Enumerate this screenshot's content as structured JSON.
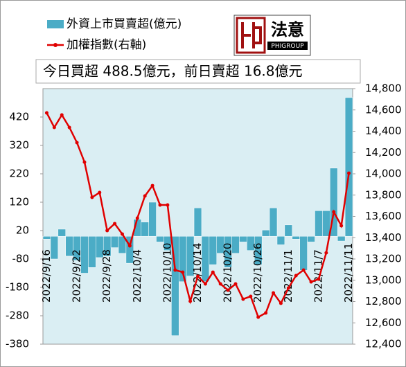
{
  "chart_data": {
    "type": "bar",
    "annotation": "今日買超 488.5億元，前日賣超 16.8億元",
    "logo": {
      "text": "法意",
      "sub": "PHIGROUP"
    },
    "categories": [
      "2022/9/16",
      null,
      null,
      null,
      "2022/9/22",
      null,
      null,
      null,
      "2022/9/28",
      null,
      null,
      null,
      "2022/10/4",
      null,
      null,
      null,
      "2022/10/10",
      null,
      null,
      null,
      "2022/10/14",
      null,
      null,
      null,
      "2022/10/20",
      null,
      null,
      null,
      "2022/10/26",
      null,
      null,
      null,
      "2022/11/1",
      null,
      null,
      null,
      "2022/11/7",
      null,
      null,
      null,
      "2022/11/11"
    ],
    "series": [
      {
        "name": "外資上市買賣超(億元)",
        "type": "bar",
        "color": "#4bacc6",
        "values": [
          -10,
          -80,
          25,
          -70,
          -85,
          -130,
          -110,
          -75,
          -70,
          -40,
          -60,
          -95,
          60,
          50,
          120,
          -20,
          -50,
          -350,
          -160,
          -140,
          100,
          -160,
          -100,
          -60,
          -110,
          -60,
          -20,
          -50,
          -100,
          22,
          100,
          -30,
          40,
          -10,
          -120,
          -20,
          90,
          90,
          240,
          -16.8,
          488.5
        ]
      },
      {
        "name": "加權指數(右軸)",
        "type": "line",
        "axis": "y2",
        "color": "#e00000",
        "values": [
          14572,
          14436,
          14553,
          14436,
          14293,
          14110,
          13779,
          13824,
          13467,
          13532,
          13434,
          13324,
          13584,
          13792,
          13889,
          13707,
          13707,
          13096,
          13076,
          12803,
          13037,
          12966,
          13076,
          12966,
          12907,
          12966,
          12823,
          12849,
          12654,
          12693,
          12881,
          12784,
          12927,
          13044,
          13096,
          12985,
          13011,
          13258,
          13642,
          13512,
          14006
        ]
      }
    ],
    "ylim": [
      -380,
      520
    ],
    "yticks": [
      -380,
      -280,
      -180,
      -80,
      20,
      120,
      220,
      320,
      420
    ],
    "y2lim": [
      12400,
      14800
    ],
    "y2ticks": [
      {
        "value": 12400,
        "label": "12,400"
      },
      {
        "value": 12600,
        "label": "12,600"
      },
      {
        "value": 12800,
        "label": "12,800"
      },
      {
        "value": 13000,
        "label": "13,000"
      },
      {
        "value": 13200,
        "label": "13,200"
      },
      {
        "value": 13400,
        "label": "13,400"
      },
      {
        "value": 13600,
        "label": "13,600"
      },
      {
        "value": 13800,
        "label": "13,800"
      },
      {
        "value": 14000,
        "label": "14,000"
      },
      {
        "value": 14200,
        "label": "14,200"
      },
      {
        "value": 14400,
        "label": "14,400"
      },
      {
        "value": 14600,
        "label": "14,600"
      },
      {
        "value": 14800,
        "label": "14,800"
      }
    ],
    "plot_background": "#daeef3"
  }
}
